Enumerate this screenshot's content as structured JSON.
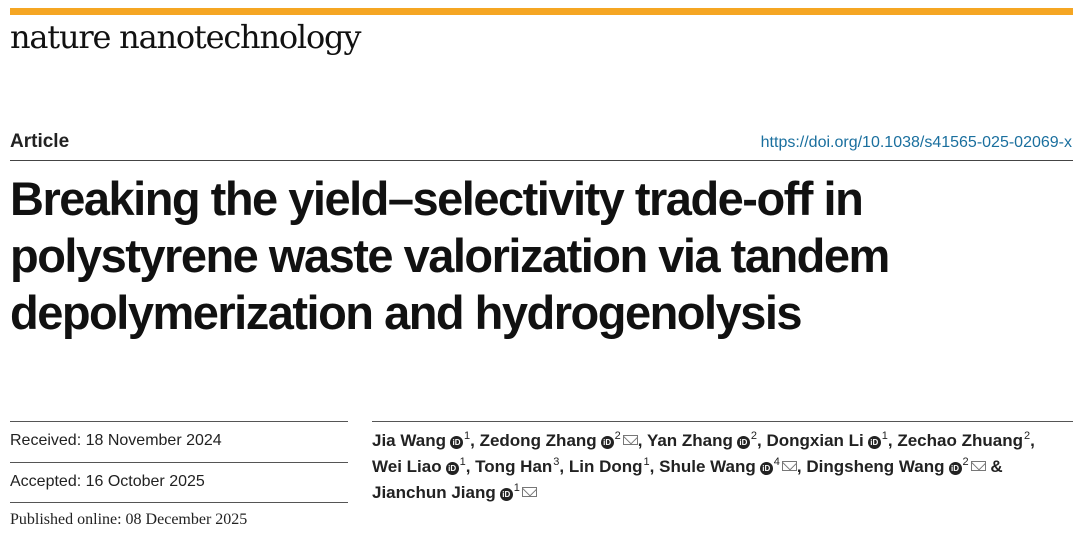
{
  "colors": {
    "accent_bar": "#f5a623",
    "doi_link": "#1a6f9e"
  },
  "journal": "nature nanotechnology",
  "article_type": "Article",
  "doi": "https://doi.org/10.1038/s41565-025-02069-x",
  "title": "Breaking the yield–selectivity trade-off in polystyrene waste valorization via tandem depolymerization and hydrogenolysis",
  "dates": {
    "received": "Received: 18 November 2024",
    "accepted": "Accepted: 16 October 2025",
    "published": "Published online: 08 December 2025"
  },
  "authors": [
    {
      "name": "Jia Wang",
      "orcid": true,
      "aff": "1",
      "email": false,
      "sep": ", "
    },
    {
      "name": "Zedong Zhang",
      "orcid": true,
      "aff": "2",
      "email": true,
      "sep": ", "
    },
    {
      "name": "Yan Zhang",
      "orcid": true,
      "aff": "2",
      "email": false,
      "sep": ", "
    },
    {
      "name": "Dongxian Li",
      "orcid": true,
      "aff": "1",
      "email": false,
      "sep": ", "
    },
    {
      "name": "Zechao Zhuang",
      "orcid": false,
      "aff": "2",
      "email": false,
      "sep": ", "
    },
    {
      "name": "Wei Liao",
      "orcid": true,
      "aff": "1",
      "email": false,
      "sep": ", "
    },
    {
      "name": "Tong Han",
      "orcid": false,
      "aff": "3",
      "email": false,
      "sep": ", "
    },
    {
      "name": "Lin Dong",
      "orcid": false,
      "aff": "1",
      "email": false,
      "sep": ", "
    },
    {
      "name": "Shule Wang",
      "orcid": true,
      "aff": "4",
      "email": true,
      "sep": ", "
    },
    {
      "name": "Dingsheng Wang",
      "orcid": true,
      "aff": "2",
      "email": true,
      "sep": " & "
    },
    {
      "name": "Jianchun Jiang",
      "orcid": true,
      "aff": "1",
      "email": true,
      "sep": ""
    }
  ]
}
